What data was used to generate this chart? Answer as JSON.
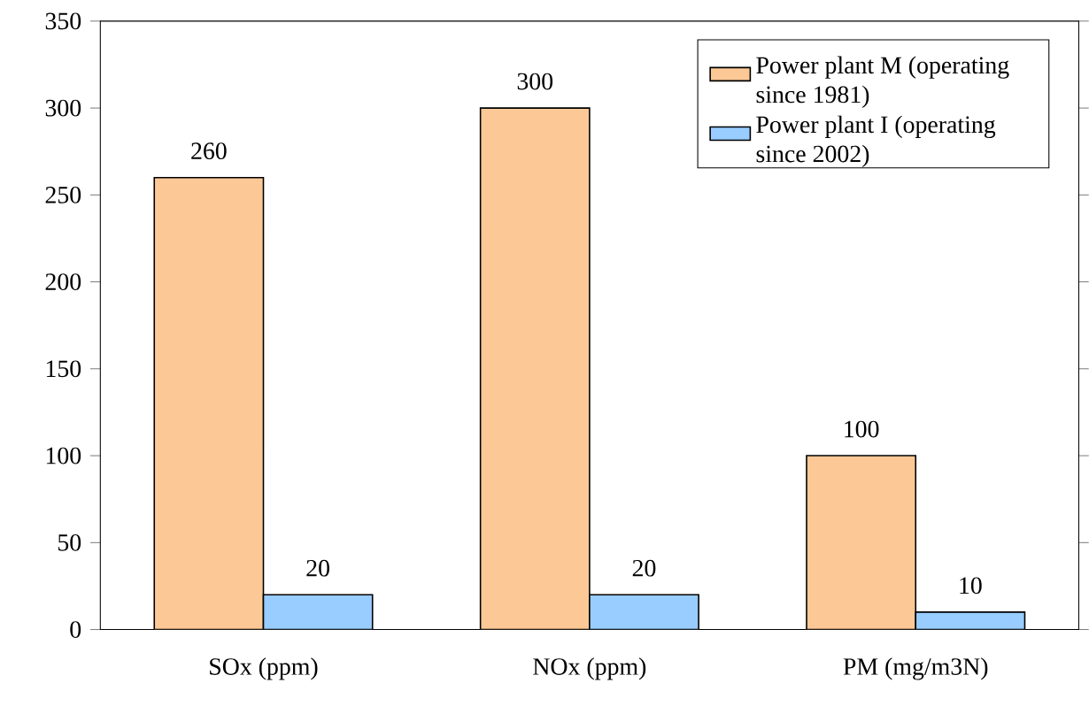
{
  "chart_data": {
    "type": "bar",
    "categories": [
      "SOx (ppm)",
      "NOx (ppm)",
      "PM (mg/m3N)"
    ],
    "series": [
      {
        "name": "Power plant M (operating since 1981)",
        "color": "#fcc996",
        "values": [
          260,
          300,
          100
        ]
      },
      {
        "name": "Power plant I (operating since 2002)",
        "color": "#99ccff",
        "values": [
          20,
          20,
          10
        ]
      }
    ],
    "ylim": [
      0,
      350
    ],
    "yticks": [
      0,
      50,
      100,
      150,
      200,
      250,
      300,
      350
    ],
    "data_labels": true,
    "legend": "top right",
    "grid": false
  }
}
